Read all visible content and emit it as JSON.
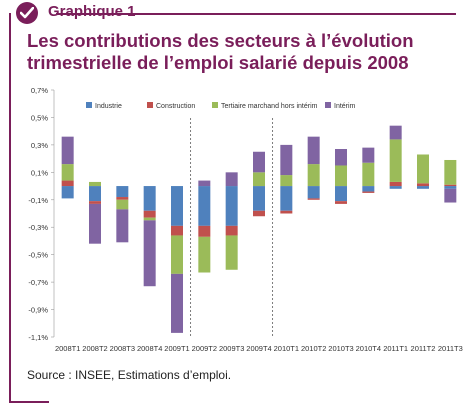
{
  "header": {
    "kicker": "Graphique 1",
    "title": "Les contributions des secteurs à l’évolution trimestrielle de l’emploi salarié depuis 2008"
  },
  "footer": {
    "source": "Source : INSEE, Estimations d’emploi."
  },
  "colors": {
    "brand": "#7a1e5a"
  },
  "chart_data": {
    "type": "bar",
    "stacked": true,
    "categories": [
      "2008T1",
      "2008T2",
      "2008T3",
      "2008T4",
      "2009T1",
      "2009T2",
      "2009T3",
      "2009T4",
      "2010T1",
      "2010T2",
      "2010T3",
      "2010T4",
      "2011T1",
      "2011T2",
      "2011T3"
    ],
    "series": [
      {
        "name": "Industrie",
        "color": "#4f81bd",
        "values": [
          -0.09,
          -0.11,
          -0.08,
          -0.18,
          -0.29,
          -0.29,
          -0.29,
          -0.18,
          -0.18,
          -0.09,
          -0.11,
          -0.04,
          -0.02,
          -0.02,
          -0.02
        ]
      },
      {
        "name": "Construction",
        "color": "#c0504d",
        "values": [
          0.04,
          -0.02,
          -0.02,
          -0.05,
          -0.07,
          -0.08,
          -0.07,
          -0.04,
          -0.02,
          -0.01,
          -0.02,
          -0.01,
          0.03,
          0.02,
          0.01
        ]
      },
      {
        "name": "Tertiaire marchand hors intérim",
        "color": "#9bbb59",
        "values": [
          0.12,
          0.03,
          -0.07,
          -0.02,
          -0.28,
          -0.26,
          -0.25,
          0.1,
          0.08,
          0.16,
          0.15,
          0.17,
          0.31,
          0.21,
          0.18
        ]
      },
      {
        "name": "Intérim",
        "color": "#8064a2",
        "values": [
          0.2,
          -0.29,
          -0.24,
          -0.48,
          -0.43,
          0.04,
          0.1,
          0.15,
          0.22,
          0.2,
          0.12,
          0.11,
          0.1,
          0.0,
          -0.1
        ]
      }
    ],
    "ylim": [
      -1.1,
      0.7
    ],
    "yticks": [
      "0,7%",
      "0,5%",
      "0,3%",
      "0,1%",
      "-0,1%",
      "-0,3%",
      "-0,5%",
      "-0,7%",
      "-0,9%",
      "-1,1%"
    ],
    "ytick_values": [
      0.7,
      0.5,
      0.3,
      0.1,
      -0.1,
      -0.3,
      -0.5,
      -0.7,
      -0.9,
      -1.1
    ],
    "dividers_after": [
      "2009T1",
      "2009T4"
    ],
    "legend_position": "top"
  }
}
